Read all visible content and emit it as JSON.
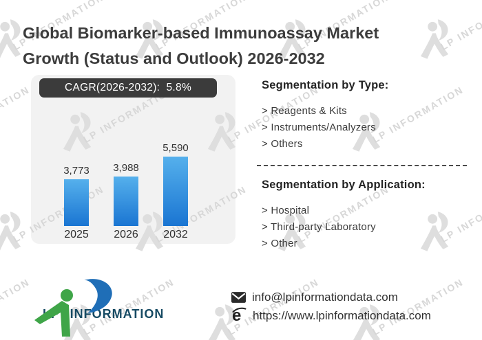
{
  "title": {
    "line1": "Global Biomarker-based Immunoassay Market",
    "line2": "Growth (Status and Outlook) 2026-2032"
  },
  "chart_data": {
    "type": "bar",
    "title": "CAGR(2026-2032):  5.8%",
    "categories": [
      "2025",
      "2026",
      "2032"
    ],
    "values": [
      3773,
      3988,
      5590
    ],
    "value_labels": [
      "3,773",
      "3,988",
      "5,590"
    ],
    "xlabel": "",
    "ylabel": "",
    "ylim": [
      0,
      5590
    ],
    "grid": false,
    "legend": "none",
    "bar_colors": {
      "top": "#55b0ec",
      "bottom": "#1a75d2"
    }
  },
  "segmentation_type": {
    "heading": "Segmentation by Type:",
    "items": [
      "> Reagents & Kits",
      "> Instruments/Analyzers",
      "> Others"
    ]
  },
  "segmentation_application": {
    "heading": "Segmentation by Application:",
    "items": [
      "> Hospital",
      "> Third-party Laboratory",
      "> Other"
    ]
  },
  "footer": {
    "logo_text": "LP INFORMATION",
    "email": "info@lpinformationdata.com",
    "website": "https://www.lpinformationdata.com"
  },
  "watermark": {
    "text": "LP INFORMATION"
  },
  "colors": {
    "badge_bg": "#3b3b3b",
    "panel_bg": "#f2f2f2",
    "bar_top": "#55b0ec",
    "bar_bottom": "#1a75d2",
    "logo_green": "#3fa548",
    "logo_blue": "#1f6eb7",
    "logo_text": "#164a63",
    "watermark_glyph": "#dedede",
    "watermark_text": "#d7d7d7",
    "title_text": "#3c3c3c",
    "body_text": "#333333"
  }
}
